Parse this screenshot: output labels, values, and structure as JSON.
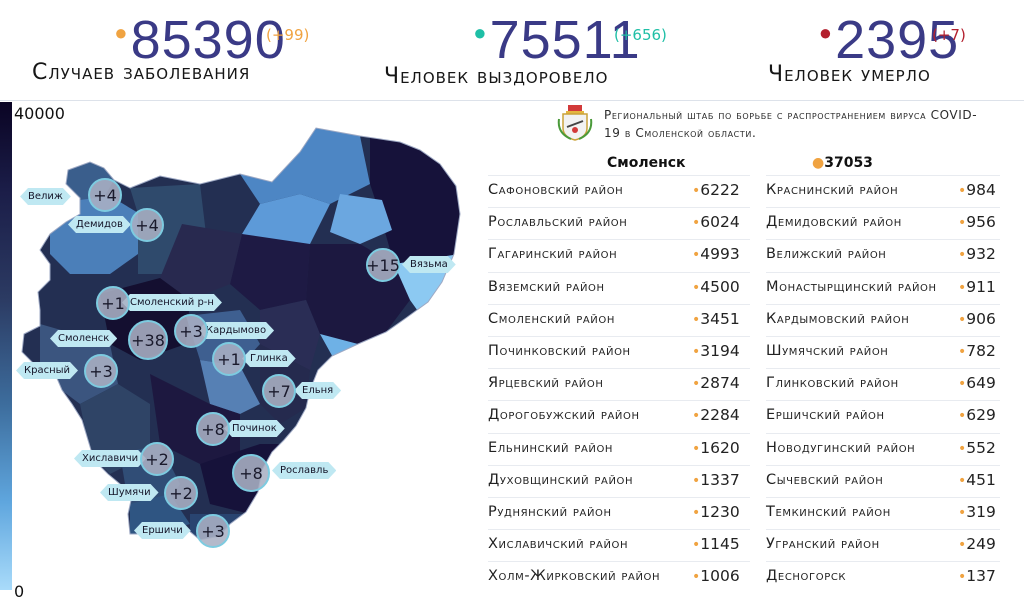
{
  "stats": {
    "cases": {
      "value": "85390",
      "delta": "(+99)",
      "label": "Случаев заболевания",
      "color": "#f0a341"
    },
    "recovered": {
      "value": "75511",
      "delta": "(+656)",
      "label": "Человек выздоровело",
      "color": "#1fbfa6"
    },
    "died": {
      "value": "2395",
      "delta": "(+7)",
      "label": "Человек умерло",
      "color": "#b3202e"
    }
  },
  "scale": {
    "max": "40000",
    "min": "0"
  },
  "hq_title": "Региональный штаб по борьбе с распространением вируса COVID-19 в Смоленской области.",
  "city": {
    "name": "Смоленск",
    "value": "37053"
  },
  "districts_left": [
    {
      "name": "Сафоновский район",
      "value": "6222"
    },
    {
      "name": "Рославльский район",
      "value": "6024"
    },
    {
      "name": "Гагаринский район",
      "value": "4993"
    },
    {
      "name": "Вяземский район",
      "value": "4500"
    },
    {
      "name": "Смоленский район",
      "value": "3451"
    },
    {
      "name": "Починковский район",
      "value": "3194"
    },
    {
      "name": "Ярцевский район",
      "value": "2874"
    },
    {
      "name": "Дорогобужский район",
      "value": "2284"
    },
    {
      "name": "Ельнинский район",
      "value": "1620"
    },
    {
      "name": "Духовщинский район",
      "value": "1337"
    },
    {
      "name": "Руднянский район",
      "value": "1230"
    },
    {
      "name": "Хиславичский район",
      "value": "1145"
    },
    {
      "name": "Холм-Жирковский район",
      "value": "1006"
    }
  ],
  "districts_right": [
    {
      "name": "Краснинский район",
      "value": "984"
    },
    {
      "name": "Демидовский район",
      "value": "956"
    },
    {
      "name": "Велижский район",
      "value": "932"
    },
    {
      "name": "Монастырщинский район",
      "value": "911"
    },
    {
      "name": "Кардымовский район",
      "value": "906"
    },
    {
      "name": "Шумячский район",
      "value": "782"
    },
    {
      "name": "Глинковский район",
      "value": "649"
    },
    {
      "name": "Ершичский район",
      "value": "629"
    },
    {
      "name": "Новодугинский район",
      "value": "552"
    },
    {
      "name": "Сычевский район",
      "value": "451"
    },
    {
      "name": "Темкинский район",
      "value": "319"
    },
    {
      "name": "Угранский район",
      "value": "249"
    },
    {
      "name": "Десногорск",
      "value": "137"
    }
  ],
  "map_markers": [
    {
      "name": "Велиж",
      "increment": "+4"
    },
    {
      "name": "Демидов",
      "increment": "+4"
    },
    {
      "name": "Вязьма",
      "increment": "+15"
    },
    {
      "name": "Смоленский р-н",
      "increment": "+1"
    },
    {
      "name": "Кардымово",
      "increment": "+3"
    },
    {
      "name": "Смоленск",
      "increment": "+38"
    },
    {
      "name": "Глинка",
      "increment": "+1"
    },
    {
      "name": "Красный",
      "increment": "+3"
    },
    {
      "name": "Ельня",
      "increment": "+7"
    },
    {
      "name": "Починок",
      "increment": "+8"
    },
    {
      "name": "Хиславичи",
      "increment": "+2"
    },
    {
      "name": "Рославль",
      "increment": "+8"
    },
    {
      "name": "Шумячи",
      "increment": "+2"
    },
    {
      "name": "Ершичи",
      "increment": "+3"
    }
  ],
  "icons": {
    "dot": "bullet-dot-icon",
    "emblem": "smolensk-coat-of-arms-icon"
  }
}
